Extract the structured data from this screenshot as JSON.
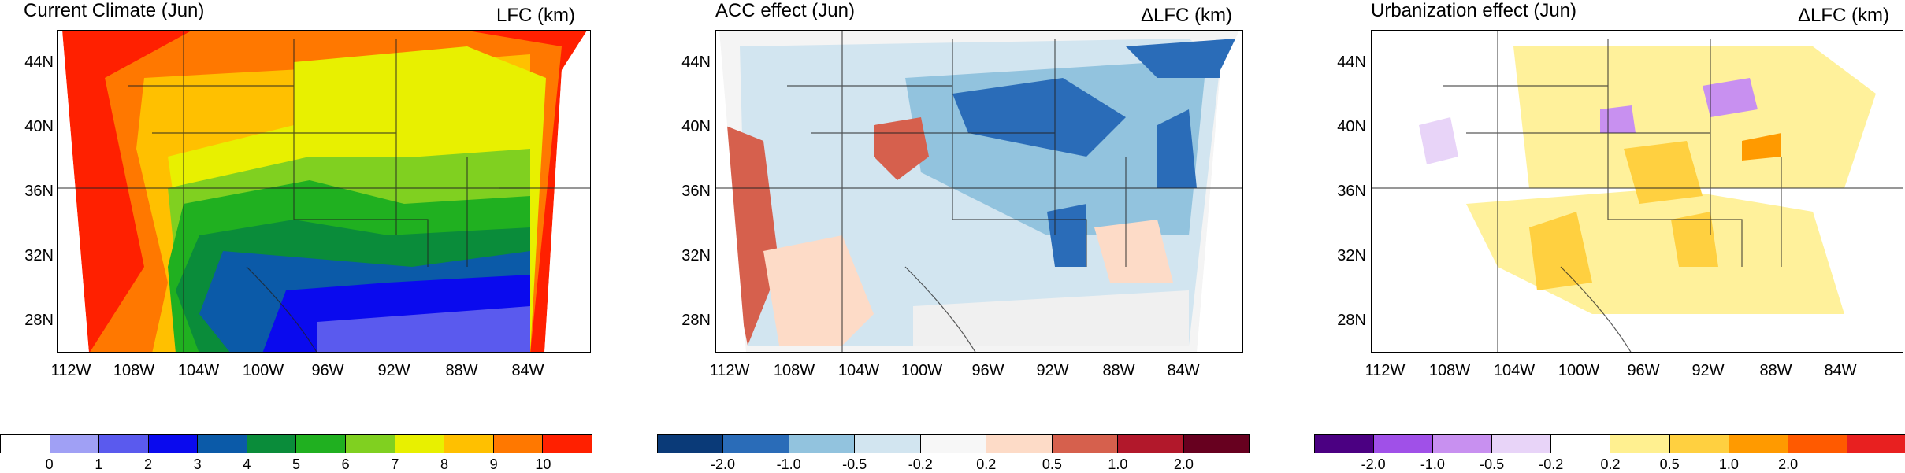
{
  "panels": [
    {
      "title": "Current Climate (Jun)",
      "units": "LFC (km)",
      "colorbar": {
        "colors": [
          "#ffffff",
          "#a0a0f5",
          "#5a5aee",
          "#0a0aee",
          "#0b5aa8",
          "#0a8c3a",
          "#20b020",
          "#80d020",
          "#e8f000",
          "#ffc000",
          "#ff7800",
          "#ff2000"
        ],
        "labels": [
          "0",
          "1",
          "2",
          "3",
          "4",
          "5",
          "6",
          "7",
          "8",
          "9",
          "10"
        ]
      }
    },
    {
      "title": "ACC effect (Jun)",
      "units": "ΔLFC (km)",
      "colorbar": {
        "colors": [
          "#0a3a78",
          "#2a6cb8",
          "#92c3de",
          "#d2e5f0",
          "#f7f7f7",
          "#fddbc7",
          "#d6604d",
          "#b2182b",
          "#67001f"
        ],
        "labels": [
          "-2.0",
          "-1.0",
          "-0.5",
          "-0.2",
          "0.2",
          "0.5",
          "1.0",
          "2.0"
        ]
      }
    },
    {
      "title": "Urbanization effect (Jun)",
      "units": "ΔLFC (km)",
      "colorbar": {
        "colors": [
          "#4b0082",
          "#a050e8",
          "#c890f0",
          "#e8d4f8",
          "#ffffff",
          "#fff090",
          "#ffd040",
          "#ff9a00",
          "#ff5a00",
          "#e82020"
        ],
        "labels": [
          "-2.0",
          "-1.0",
          "-0.5",
          "-0.2",
          "0.2",
          "0.5",
          "1.0",
          "2.0"
        ]
      }
    }
  ],
  "axes": {
    "lat_labels": [
      "44N",
      "40N",
      "36N",
      "32N",
      "28N"
    ],
    "lon_labels": [
      "112W",
      "108W",
      "104W",
      "100W",
      "96W",
      "92W",
      "88W",
      "84W"
    ]
  }
}
